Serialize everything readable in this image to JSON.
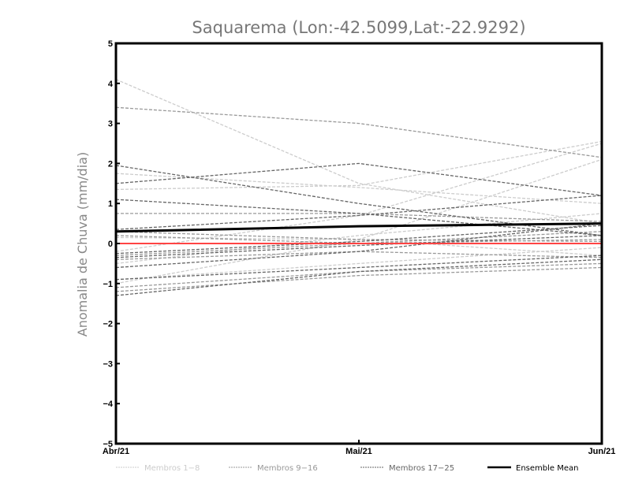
{
  "chart_data": {
    "type": "line",
    "title": "Saquarema (Lon:-42.5099,Lat:-22.9292)",
    "xlabel": "",
    "ylabel": "Anomalia de Chuva (mm/dia)",
    "categories": [
      "Abr/21",
      "Mai/21",
      "Jun/21"
    ],
    "ylim": [
      -5,
      5
    ],
    "yticks": [
      "-5",
      "-4",
      "-3",
      "-2",
      "-1",
      "0",
      "1",
      "2",
      "3",
      "4",
      "5"
    ],
    "grid": false,
    "legend_position": "bottom",
    "zero_line": {
      "value": 0,
      "color": "#ff4444"
    },
    "groups": [
      {
        "name": "Membros 1-8",
        "color": "#cccccc",
        "series": [
          [
            4.1,
            1.5,
            0.5
          ],
          [
            1.75,
            1.4,
            1.0
          ],
          [
            1.35,
            1.45,
            2.55
          ],
          [
            -0.2,
            0.7,
            2.5
          ],
          [
            -1.0,
            0.1,
            2.1
          ],
          [
            -0.5,
            0.2,
            0.75
          ],
          [
            -0.9,
            -0.5,
            -0.1
          ],
          [
            0.15,
            0.1,
            -0.3
          ]
        ]
      },
      {
        "name": "Membros 9-16",
        "color": "#999999",
        "series": [
          [
            3.4,
            3.0,
            2.15
          ],
          [
            0.75,
            0.75,
            0.55
          ],
          [
            0.3,
            0.1,
            0.05
          ],
          [
            -0.3,
            0.0,
            0.1
          ],
          [
            -0.4,
            -0.2,
            -0.35
          ],
          [
            -1.1,
            -0.7,
            -0.5
          ],
          [
            -1.2,
            -0.8,
            -0.6
          ],
          [
            0.2,
            0.0,
            0.3
          ]
        ]
      },
      {
        "name": "Membros 17-25",
        "color": "#666666",
        "series": [
          [
            1.95,
            1.0,
            0.2
          ],
          [
            1.5,
            2.0,
            1.2
          ],
          [
            1.1,
            0.75,
            0.2
          ],
          [
            0.35,
            0.7,
            1.2
          ],
          [
            -0.25,
            0.05,
            0.45
          ],
          [
            -0.35,
            -0.05,
            0.2
          ],
          [
            -0.6,
            -0.2,
            0.5
          ],
          [
            -0.9,
            -0.6,
            -0.3
          ],
          [
            -1.3,
            -0.7,
            -0.4
          ]
        ]
      },
      {
        "name": "Ensemble Mean",
        "color": "#000000",
        "series": [
          [
            0.3,
            0.43,
            0.5
          ]
        ]
      }
    ]
  }
}
